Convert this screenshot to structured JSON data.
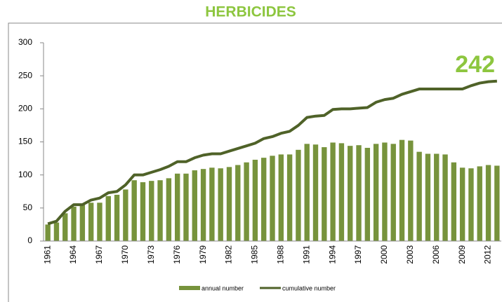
{
  "chart_data": {
    "type": "combo",
    "title": "HERBICIDES",
    "annotation": "242",
    "categories": [
      "1961",
      null,
      null,
      "1964",
      null,
      null,
      "1967",
      null,
      null,
      "1970",
      null,
      null,
      "1973",
      null,
      null,
      "1976",
      null,
      null,
      "1979",
      null,
      null,
      "1982",
      null,
      null,
      "1985",
      null,
      null,
      "1988",
      null,
      null,
      "1991",
      null,
      null,
      "1994",
      null,
      null,
      "1997",
      null,
      null,
      "2000",
      null,
      null,
      "2003",
      null,
      null,
      "2006",
      null,
      null,
      "2009",
      null,
      null,
      "2012",
      null
    ],
    "series": [
      {
        "name": "annual number",
        "type": "bar",
        "color": "#77933c",
        "values": [
          25,
          28,
          42,
          52,
          55,
          58,
          58,
          68,
          70,
          78,
          92,
          89,
          91,
          92,
          95,
          102,
          102,
          107,
          109,
          111,
          110,
          112,
          115,
          119,
          123,
          126,
          129,
          131,
          131,
          138,
          147,
          146,
          142,
          149,
          148,
          144,
          145,
          141,
          147,
          149,
          147,
          153,
          152,
          135,
          132,
          132,
          131,
          119,
          111,
          110,
          113,
          115,
          114
        ]
      },
      {
        "name": "cumulative number",
        "type": "line",
        "color": "#4f6228",
        "values": [
          26,
          30,
          45,
          55,
          55,
          62,
          65,
          73,
          75,
          85,
          100,
          100,
          104,
          108,
          113,
          120,
          120,
          126,
          130,
          132,
          132,
          136,
          140,
          144,
          148,
          155,
          158,
          163,
          166,
          175,
          187,
          189,
          190,
          199,
          200,
          200,
          201,
          202,
          210,
          214,
          216,
          222,
          226,
          230,
          230,
          230,
          230,
          230,
          230,
          235,
          239,
          241,
          242
        ]
      }
    ],
    "ylim": [
      0,
      300
    ],
    "yticks": [
      0,
      50,
      100,
      150,
      200,
      250,
      300
    ],
    "grid": false
  }
}
